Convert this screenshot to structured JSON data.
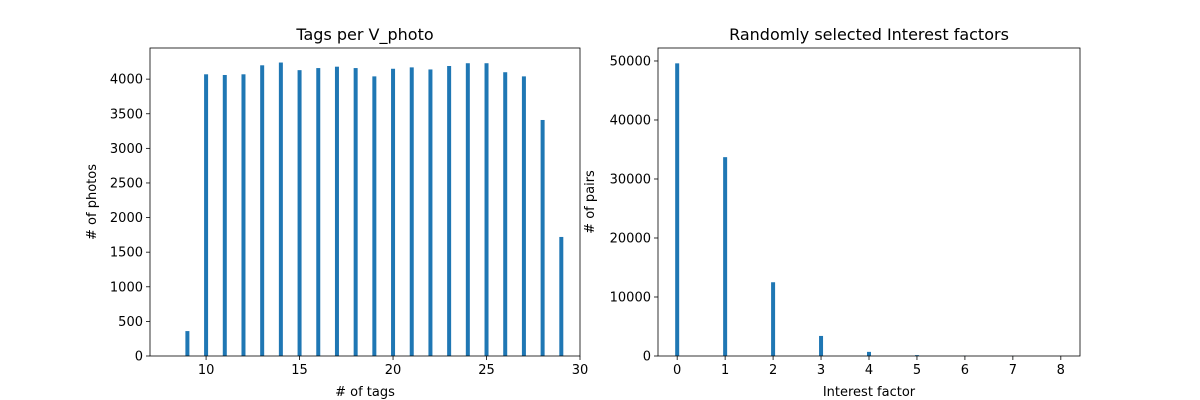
{
  "chart_data": [
    {
      "type": "bar",
      "title": "Tags per V_photo",
      "xlabel": "# of tags",
      "ylabel": "# of photos",
      "xlim": [
        7,
        30
      ],
      "ylim": [
        0,
        4450
      ],
      "xticks": [
        10,
        15,
        20,
        25,
        30
      ],
      "yticks": [
        0,
        500,
        1000,
        1500,
        2000,
        2500,
        3000,
        3500,
        4000
      ],
      "bar_color": "#1f77b4",
      "x": [
        9,
        10,
        11,
        12,
        13,
        14,
        15,
        16,
        17,
        18,
        19,
        20,
        21,
        22,
        23,
        24,
        25,
        26,
        27,
        28,
        29
      ],
      "values": [
        360,
        4070,
        4060,
        4070,
        4200,
        4240,
        4130,
        4160,
        4180,
        4160,
        4040,
        4150,
        4170,
        4140,
        4190,
        4230,
        4230,
        4100,
        4040,
        3410,
        1720
      ],
      "grid": false
    },
    {
      "type": "bar",
      "title": "Randomly selected Interest factors",
      "xlabel": "Interest factor",
      "ylabel": "# of pairs",
      "xlim": [
        -0.4,
        8.4
      ],
      "ylim": [
        0,
        52200
      ],
      "xticks": [
        0,
        1,
        2,
        3,
        4,
        5,
        6,
        7,
        8
      ],
      "yticks": [
        0,
        10000,
        20000,
        30000,
        40000,
        50000
      ],
      "bar_color": "#1f77b4",
      "x": [
        0,
        1,
        2,
        3,
        4,
        5,
        6,
        7,
        8
      ],
      "values": [
        49600,
        33700,
        12500,
        3400,
        700,
        150,
        40,
        15,
        5
      ],
      "grid": false
    }
  ]
}
